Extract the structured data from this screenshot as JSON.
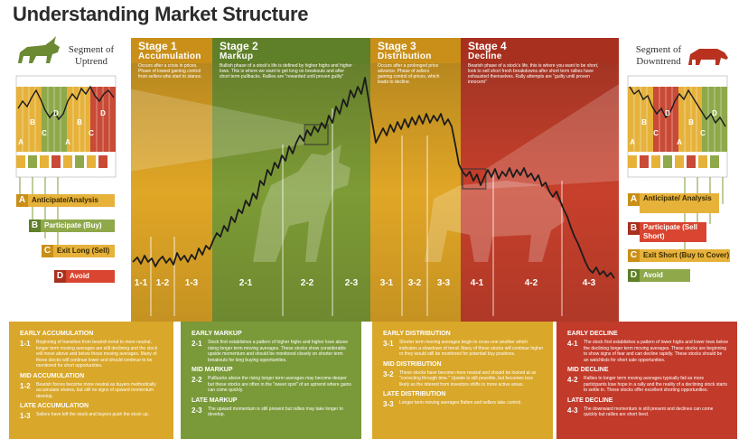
{
  "title": "Understanding Market Structure",
  "left_segment": {
    "label": "Segment of Uptrend",
    "bar_letters": [
      "A",
      "B",
      "C",
      "D",
      "A",
      "B",
      "C",
      "D"
    ]
  },
  "right_segment": {
    "label": "Segment of Downtrend",
    "bar_letters": [
      "A",
      "B",
      "C",
      "D",
      "A",
      "B",
      "C",
      "D"
    ]
  },
  "left_legend": [
    {
      "letter": "A",
      "label": "Anticipate/Analysis"
    },
    {
      "letter": "B",
      "label": "Participate (Buy)"
    },
    {
      "letter": "C",
      "label": "Exit Long (Sell)"
    },
    {
      "letter": "D",
      "label": "Avoid"
    }
  ],
  "right_legend": [
    {
      "letter": "A",
      "label": "Anticipate/ Analysis"
    },
    {
      "letter": "B",
      "label": "Participate (Sell Short)"
    },
    {
      "letter": "C",
      "label": "Exit Short (Buy to Cover)"
    },
    {
      "letter": "D",
      "label": "Avoid"
    }
  ],
  "stages": [
    {
      "num": "Stage 1",
      "name": "Accumulation",
      "desc": "Occurs after a crisis in prices. Phase of lowest gaining control from sellers who start to stance.",
      "color": "#d9a72a"
    },
    {
      "num": "Stage 2",
      "name": "Markup",
      "desc": "Bullish phase of a stock's life is defined by higher highs and higher lows. This is where we want to get long on breakouts and after short term pullbacks. Rallies are \"rewarded until proven guilty\"",
      "color": "#7a9a3a"
    },
    {
      "num": "Stage 3",
      "name": "Distribution",
      "desc": "Occurs after a prolonged price advance. Phase of sellers gaining control of prices, which leads to decline.",
      "color": "#d9a72a"
    },
    {
      "num": "Stage 4",
      "name": "Decline",
      "desc": "Bearish phase of a stock's life, this is where you want to be short, look to sell short fresh breakdowns after short term rallies have exhausted themselves. Rally attempts are \"guilty until proven innocent\"",
      "color": "#c23a2a"
    }
  ],
  "sub_labels": [
    "1-1",
    "1-2",
    "1-3",
    "2-1",
    "2-2",
    "2-3",
    "3-1",
    "3-2",
    "3-3",
    "4-1",
    "4-2",
    "4-3"
  ],
  "panels": [
    {
      "color": "#d9a72a",
      "sections": [
        {
          "heading": "EARLY ACCUMULATION",
          "code": "1-1",
          "text": "Beginning of transition from bearish trend to more neutral, longer term moving averages are still declining and the stock will move above and below those moving averages. Many of these stocks will continue lower and should continue to be monitored for short opportunities."
        },
        {
          "heading": "MID ACCUMULATION",
          "code": "1-2",
          "text": "Bearish forces become more neutral as buyers methodically accumulate shares, but still no signs of upward momentum develop."
        },
        {
          "heading": "LATE ACCUMULATION",
          "code": "1-3",
          "text": "Sellers have left the stock and buyers push the stock up."
        }
      ]
    },
    {
      "color": "#7a9a3a",
      "sections": [
        {
          "heading": "EARLY MARKUP",
          "code": "2-1",
          "text": "Stock first establishes a pattern of higher highs and higher lows above rising longer term moving averages. These stocks show considerable upside momentum and should be monitored closely on shorter term breakouts for long buying opportunities."
        },
        {
          "heading": "MID MARKUP",
          "code": "2-2",
          "text": "Pullbacks above the rising longer term averages may become deeper but these stocks are often in the \"sweet spot\" of an uptrend where gains can come quickly."
        },
        {
          "heading": "LATE MARKUP",
          "code": "2-3",
          "text": "The upward momentum is still present but rallies may take longer to develop."
        }
      ]
    },
    {
      "color": "#d9a72a",
      "sections": [
        {
          "heading": "EARLY DISTRIBUTION",
          "code": "3-1",
          "text": "Shorter term moving averages begin to cross one another which indicates a slowdown of trend. Many of these stocks will continue higher or they would still be monitored for potential buy positions."
        },
        {
          "heading": "MID DISTRIBUTION",
          "code": "3-2",
          "text": "These stocks have become more neutral and should be looked at as \"correcting through time.\" Upside is still possible, but becomes less likely as the interest from investors shifts to more active areas."
        },
        {
          "heading": "LATE DISTRIBUTION",
          "code": "3-3",
          "text": "Longer term moving averages flatten and sellers take control."
        }
      ]
    },
    {
      "color": "#c23a2a",
      "sections": [
        {
          "heading": "EARLY DECLINE",
          "code": "4-1",
          "text": "The stock first establishes a pattern of lower highs and lower lows below the declining longer term moving averages. These stocks are beginning to show signs of fear and can decline rapidly. These stocks should be an watchlists for short sale opportunities."
        },
        {
          "heading": "MID DECLINE",
          "code": "4-2",
          "text": "Rallies to longer term moving averages typically fail as more participants lose hope in a rally and the reality of a declining stock starts to settle in. These stocks offer excellent shorting opportunities."
        },
        {
          "heading": "LATE DECLINE",
          "code": "4-3",
          "text": "The downward momentum is still present and declines can come quickly but rallies are short lived."
        }
      ]
    }
  ]
}
